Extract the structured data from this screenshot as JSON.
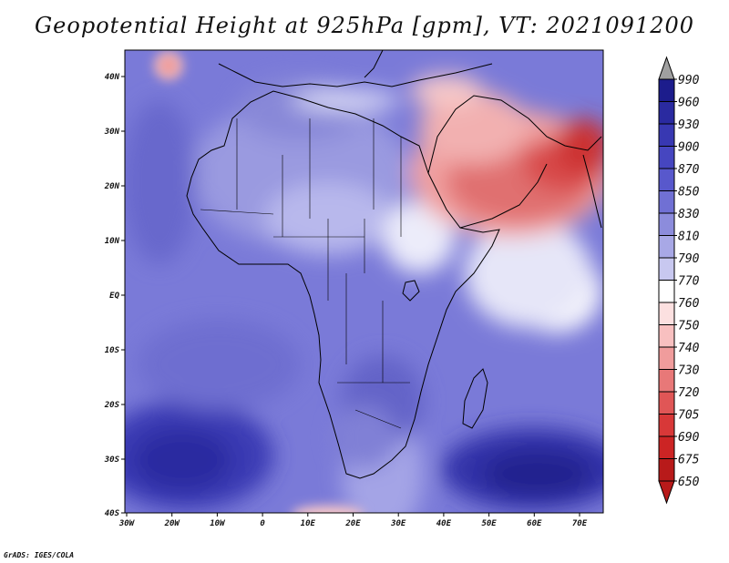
{
  "title": "Geopotential Height at 925hPa [gpm], VT: 2021091200",
  "credit": "GrADS: IGES/COLA",
  "map": {
    "lon_ticks": [
      "30W",
      "20W",
      "10W",
      "0",
      "10E",
      "20E",
      "30E",
      "40E",
      "50E",
      "60E",
      "70E"
    ],
    "lat_ticks": [
      "40N",
      "30N",
      "20N",
      "10N",
      "EQ",
      "10S",
      "20S",
      "30S",
      "40S"
    ]
  },
  "colorbar": {
    "levels": [
      "990",
      "960",
      "930",
      "900",
      "870",
      "850",
      "830",
      "810",
      "790",
      "770",
      "760",
      "750",
      "740",
      "730",
      "720",
      "705",
      "690",
      "675",
      "650"
    ],
    "colors": [
      "#a0a0a0",
      "#1c1c8c",
      "#2a2aa0",
      "#3838b2",
      "#4646c0",
      "#5858cc",
      "#7070d4",
      "#8c8cdc",
      "#a8a8e6",
      "#c8c8f0",
      "#ffffff",
      "#fce0e0",
      "#f8c0c0",
      "#f09c9c",
      "#e87878",
      "#e05656",
      "#d83838",
      "#cc2424",
      "#b81a1a"
    ]
  },
  "colors": {
    "map_base": "#6a6ad0"
  }
}
